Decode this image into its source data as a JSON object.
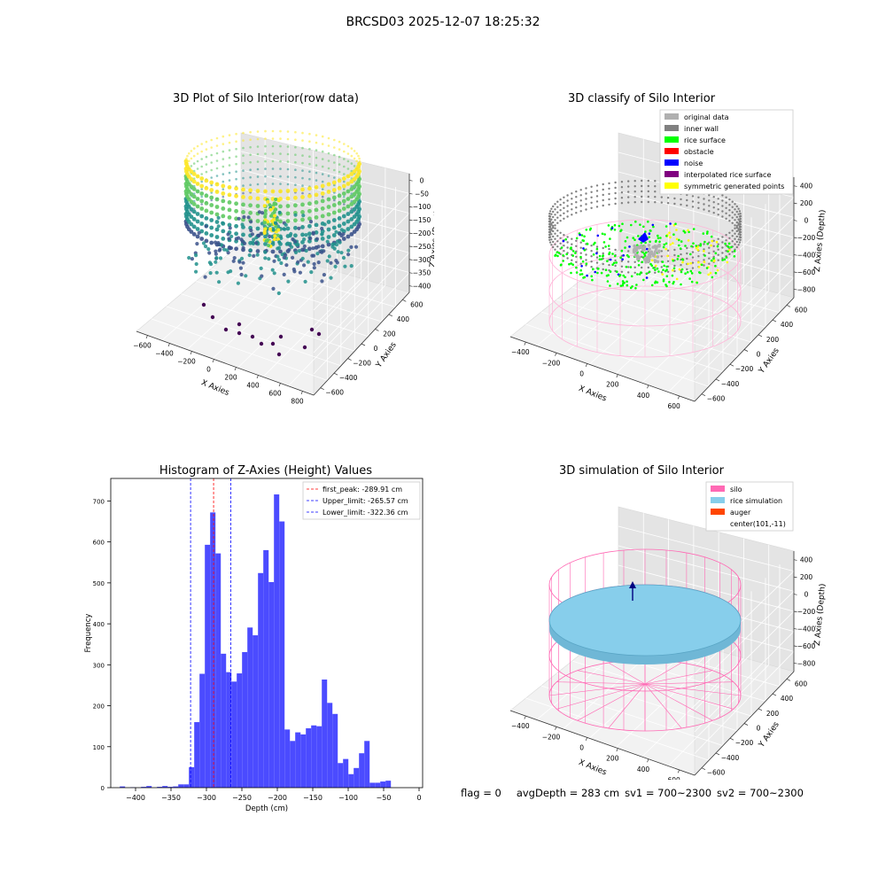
{
  "suptitle": "BRCSD03 2025-12-07 18:25:32",
  "panels": {
    "raw": {
      "title": "3D Plot of Silo Interior(row data)",
      "xlabel": "X Axies",
      "ylabel": "Y Axies",
      "zlabel": "Z Axies (Depth)",
      "xticks": [
        "−600",
        "−400",
        "−200",
        "0",
        "200",
        "400",
        "600",
        "800"
      ],
      "yticks": [
        "600",
        "400",
        "200",
        "0",
        "−200",
        "−400",
        "−600"
      ],
      "zticks": [
        "0",
        "−50",
        "−100",
        "−150",
        "−200",
        "−250",
        "−300",
        "−350",
        "−400"
      ],
      "colormap": [
        "#440154",
        "#3b528b",
        "#21918c",
        "#5ec962",
        "#fde725"
      ]
    },
    "classify": {
      "title": "3D classify of Silo Interior",
      "xlabel": "X Axies",
      "ylabel": "Y Axies",
      "zlabel": "Z Axies (Depth)",
      "xticks": [
        "−400",
        "−200",
        "0",
        "200",
        "400",
        "600"
      ],
      "yticks": [
        "600",
        "400",
        "200",
        "0",
        "−200",
        "−400",
        "−600"
      ],
      "zticks": [
        "400",
        "200",
        "0",
        "−200",
        "−400",
        "−600",
        "−800"
      ],
      "legend": [
        {
          "label": "original data",
          "color": "#b0b0b0"
        },
        {
          "label": "inner wall",
          "color": "#808080"
        },
        {
          "label": "rice surface",
          "color": "#00ff00"
        },
        {
          "label": "obstacle",
          "color": "#ff0000"
        },
        {
          "label": "noise",
          "color": "#0000ff"
        },
        {
          "label": "interpolated rice surface",
          "color": "#800080"
        },
        {
          "label": "symmetric generated points",
          "color": "#ffff00"
        }
      ]
    },
    "simulation": {
      "title": "3D simulation of Silo Interior",
      "xlabel": "X Axies",
      "ylabel": "Y Axies",
      "zlabel": "Z Axies (Depth)",
      "xticks": [
        "−400",
        "−200",
        "0",
        "200",
        "400",
        "600"
      ],
      "yticks": [
        "600",
        "400",
        "200",
        "0",
        "−200",
        "−400",
        "−600"
      ],
      "zticks": [
        "400",
        "200",
        "0",
        "−200",
        "−400",
        "−600",
        "−800"
      ],
      "legend": [
        {
          "label": "silo",
          "color": "#ff69b4"
        },
        {
          "label": "rice simulation",
          "color": "#87ceeb"
        },
        {
          "label": "auger",
          "color": "#ff4500"
        },
        {
          "label": "center(101,-11)",
          "color": ""
        }
      ]
    }
  },
  "chart_data": {
    "type": "bar",
    "title": "Histogram of Z-Axies (Height) Values",
    "xlabel": "Depth (cm)",
    "ylabel": "Frequency",
    "xlim": [
      -435,
      5
    ],
    "ylim": [
      0,
      755
    ],
    "bin_width": 7.5,
    "color": "#4b4bff",
    "xticks": [
      {
        "value": -400,
        "label": "−400"
      },
      {
        "value": -350,
        "label": "−350"
      },
      {
        "value": -300,
        "label": "−300"
      },
      {
        "value": -250,
        "label": "−250"
      },
      {
        "value": -200,
        "label": "−200"
      },
      {
        "value": -150,
        "label": "−150"
      },
      {
        "value": -100,
        "label": "−100"
      },
      {
        "value": -50,
        "label": "−50"
      },
      {
        "value": 0,
        "label": "0"
      }
    ],
    "yticks": [
      0,
      100,
      200,
      300,
      400,
      500,
      600,
      700
    ],
    "bins": [
      {
        "x": -418.5,
        "count": 3
      },
      {
        "x": -411,
        "count": 0
      },
      {
        "x": -403.5,
        "count": 1
      },
      {
        "x": -396,
        "count": 0
      },
      {
        "x": -388.5,
        "count": 2
      },
      {
        "x": -381,
        "count": 4
      },
      {
        "x": -373.5,
        "count": 0
      },
      {
        "x": -366,
        "count": 2
      },
      {
        "x": -358.5,
        "count": 4
      },
      {
        "x": -351,
        "count": 2
      },
      {
        "x": -343.5,
        "count": 3
      },
      {
        "x": -336,
        "count": 8
      },
      {
        "x": -328.5,
        "count": 8
      },
      {
        "x": -321,
        "count": 50
      },
      {
        "x": -313.5,
        "count": 160
      },
      {
        "x": -306,
        "count": 278
      },
      {
        "x": -298.5,
        "count": 593
      },
      {
        "x": -291,
        "count": 672
      },
      {
        "x": -283.5,
        "count": 572
      },
      {
        "x": -276,
        "count": 327
      },
      {
        "x": -268.5,
        "count": 282
      },
      {
        "x": -261,
        "count": 259
      },
      {
        "x": -253.5,
        "count": 279
      },
      {
        "x": -246,
        "count": 331
      },
      {
        "x": -238.5,
        "count": 391
      },
      {
        "x": -231,
        "count": 372
      },
      {
        "x": -223.5,
        "count": 524
      },
      {
        "x": -216,
        "count": 580
      },
      {
        "x": -208.5,
        "count": 502
      },
      {
        "x": -201,
        "count": 716
      },
      {
        "x": -193.5,
        "count": 650
      },
      {
        "x": -186,
        "count": 142
      },
      {
        "x": -178.5,
        "count": 114
      },
      {
        "x": -171,
        "count": 135
      },
      {
        "x": -163.5,
        "count": 130
      },
      {
        "x": -156,
        "count": 145
      },
      {
        "x": -148.5,
        "count": 152
      },
      {
        "x": -141,
        "count": 150
      },
      {
        "x": -133.5,
        "count": 264
      },
      {
        "x": -126,
        "count": 207
      },
      {
        "x": -118.5,
        "count": 180
      },
      {
        "x": -111,
        "count": 60
      },
      {
        "x": -103.5,
        "count": 70
      },
      {
        "x": -96,
        "count": 33
      },
      {
        "x": -88.5,
        "count": 48
      },
      {
        "x": -81,
        "count": 84
      },
      {
        "x": -73.5,
        "count": 114
      },
      {
        "x": -66,
        "count": 12
      },
      {
        "x": -58.5,
        "count": 12
      },
      {
        "x": -51,
        "count": 15
      },
      {
        "x": -43.5,
        "count": 17
      }
    ],
    "vlines": [
      {
        "x": -289.91,
        "color": "#ff0000",
        "label": "first_peak: -289.91 cm"
      },
      {
        "x": -265.57,
        "color": "#0000ff",
        "label": "Upper_limit: -265.57 cm"
      },
      {
        "x": -322.36,
        "color": "#0000ff",
        "label": "Lower_limit: -322.36 cm"
      }
    ],
    "legend_position": "top-right"
  },
  "footer": {
    "flag": "flag = 0",
    "avg_depth": "avgDepth = 283 cm",
    "sv1": "sv1 = 700~2300",
    "sv2": "sv2 = 700~2300"
  }
}
